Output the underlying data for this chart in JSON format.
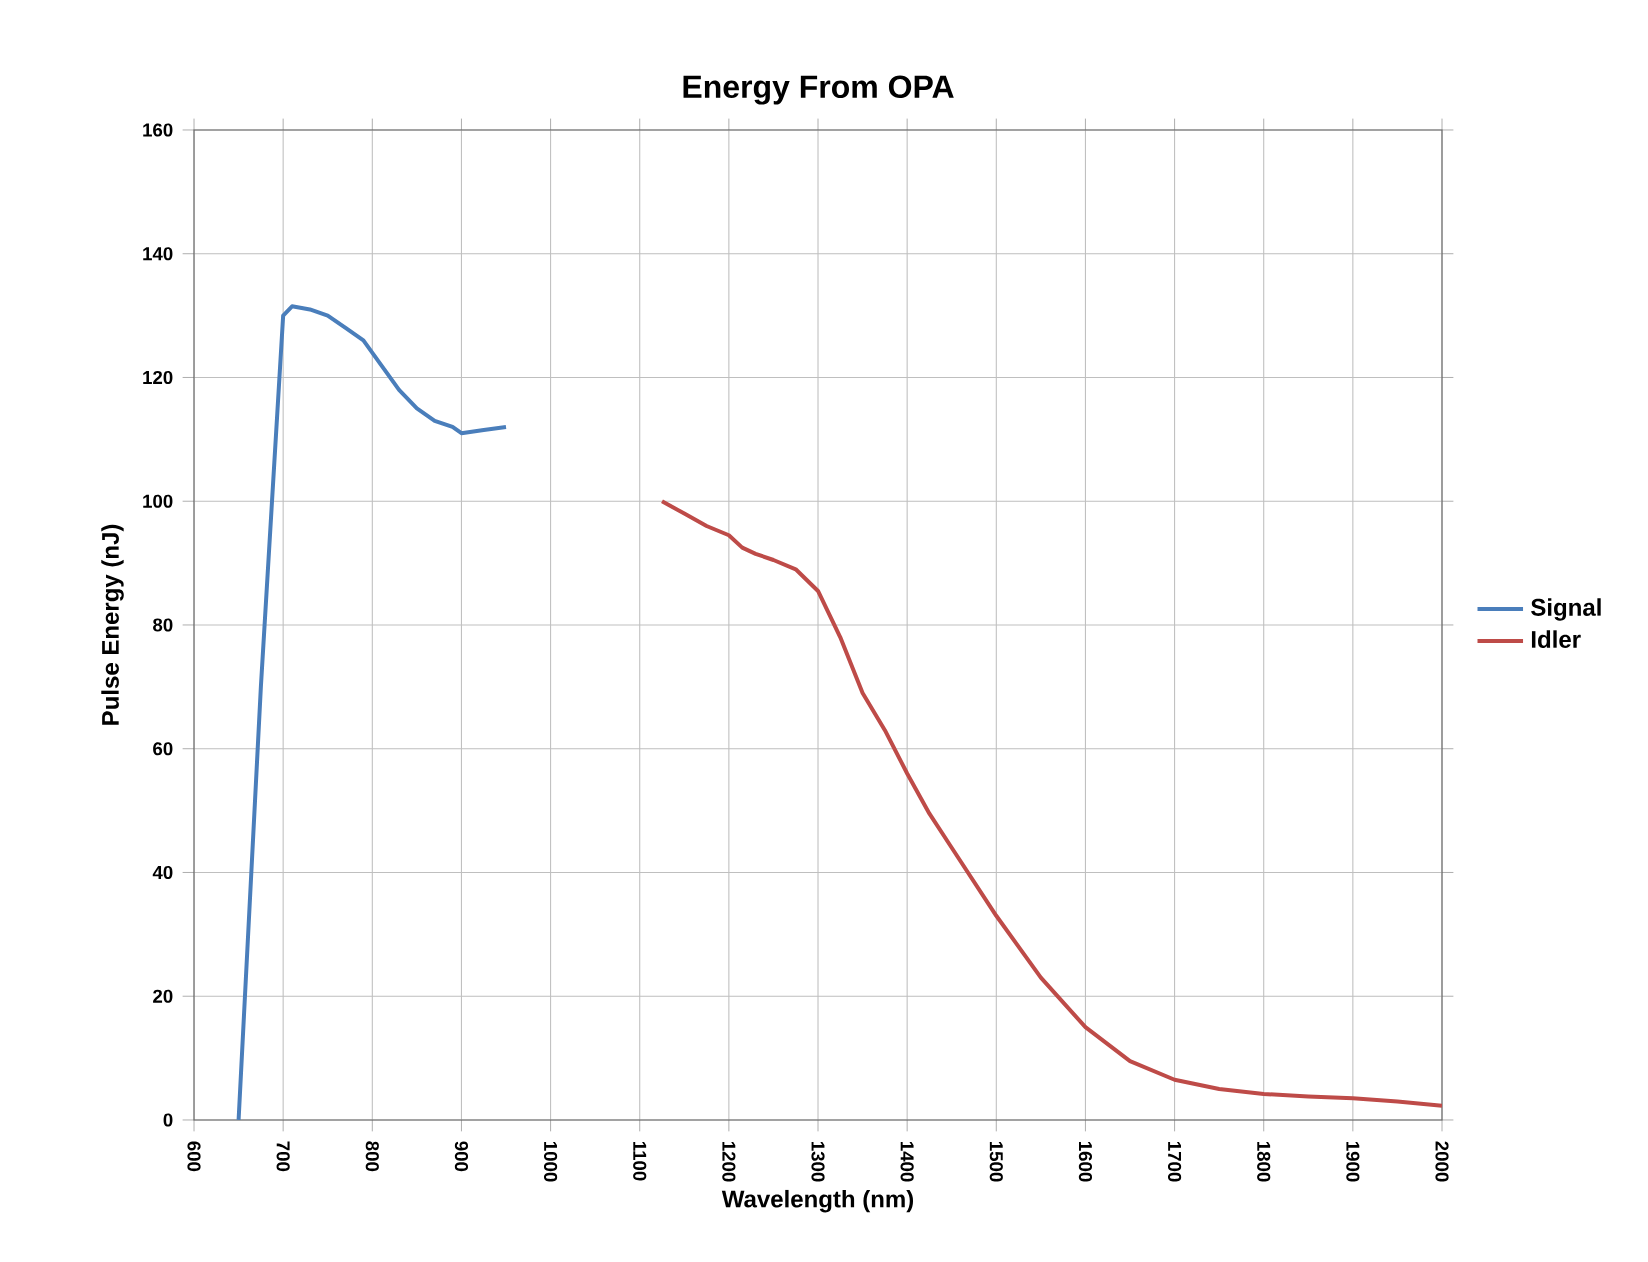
{
  "chart_data": {
    "type": "line",
    "title": "Energy From OPA",
    "xlabel": "Wavelength (nm)",
    "ylabel": "Pulse Energy (nJ)",
    "series": [
      {
        "name": "Signal",
        "color": "#4a7ebb",
        "x": [
          650,
          675,
          700,
          710,
          730,
          750,
          770,
          790,
          810,
          830,
          850,
          870,
          890,
          900,
          925,
          950
        ],
        "values": [
          0,
          70,
          130,
          131.5,
          131,
          130,
          128,
          126,
          122,
          118,
          115,
          113,
          112,
          111,
          111.5,
          112
        ]
      },
      {
        "name": "Idler",
        "color": "#be4b48",
        "x": [
          1125,
          1150,
          1175,
          1200,
          1215,
          1230,
          1250,
          1275,
          1300,
          1325,
          1350,
          1375,
          1400,
          1425,
          1450,
          1500,
          1550,
          1600,
          1650,
          1700,
          1750,
          1800,
          1850,
          1900,
          1950,
          2000
        ],
        "values": [
          100,
          98,
          96,
          94.5,
          92.5,
          91.5,
          90.5,
          89,
          85.5,
          78,
          69,
          63,
          56,
          49.5,
          44,
          33,
          23,
          15,
          9.5,
          6.5,
          5,
          4.2,
          3.8,
          3.5,
          3,
          2.3
        ]
      }
    ],
    "xlim": [
      600,
      2000
    ],
    "xticks": [
      600,
      700,
      800,
      900,
      1000,
      1100,
      1200,
      1300,
      1400,
      1500,
      1600,
      1700,
      1800,
      1900,
      2000
    ],
    "ylim": [
      0,
      160
    ],
    "yticks": [
      0,
      20,
      40,
      60,
      80,
      100,
      120,
      140,
      160
    ],
    "grid": true,
    "legend": "right",
    "marker": "none",
    "line_style": "solid"
  }
}
